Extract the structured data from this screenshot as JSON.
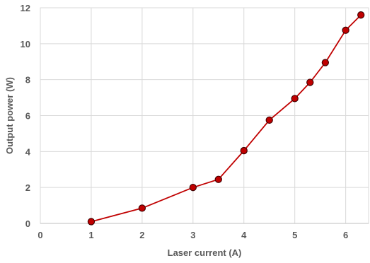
{
  "chart_data": {
    "type": "scatter",
    "title": "",
    "xlabel": "Laser current (A)",
    "ylabel": "Output power (W)",
    "xlim": [
      0,
      6.45
    ],
    "ylim": [
      0,
      12
    ],
    "x_ticks": [
      "0",
      "1",
      "2",
      "3",
      "4",
      "5",
      "6"
    ],
    "y_ticks": [
      "0",
      "2",
      "4",
      "6",
      "8",
      "10",
      "12"
    ],
    "grid": true,
    "legend": "none",
    "series": [
      {
        "x": [
          1,
          2,
          3,
          3.5,
          4,
          4.5,
          5,
          5.3,
          5.6,
          6,
          6.3
        ],
        "y": [
          0.1,
          0.85,
          2.0,
          2.45,
          4.05,
          5.75,
          6.95,
          7.85,
          8.95,
          10.75,
          11.6
        ],
        "line_color": "#c00000",
        "marker_color": "#c00000",
        "marker_edge": "#3b0000"
      }
    ]
  }
}
